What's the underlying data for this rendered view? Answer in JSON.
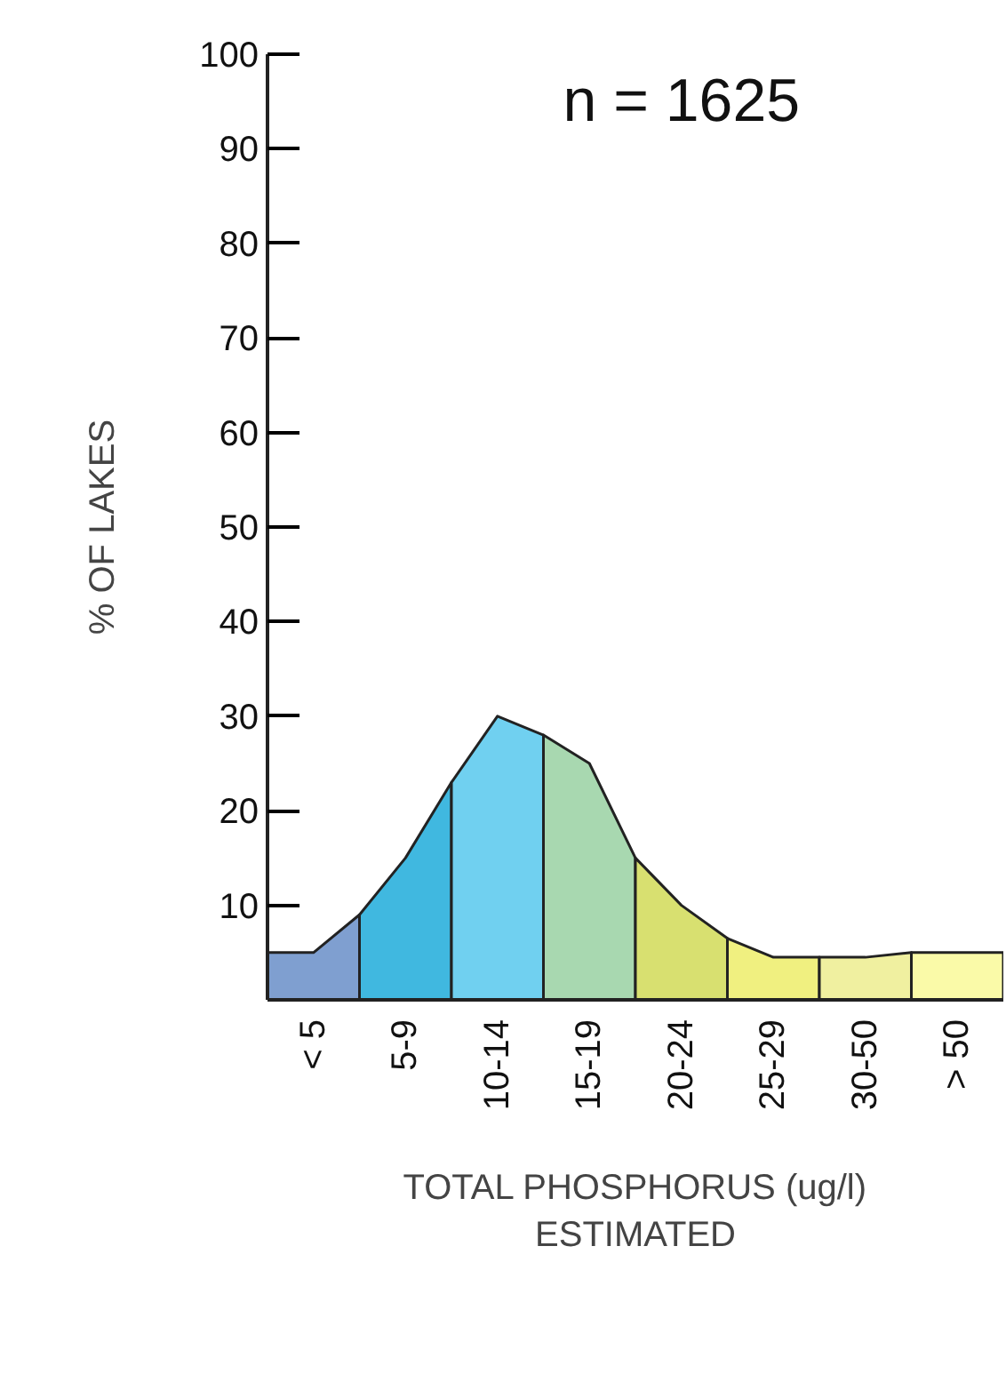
{
  "chart_data": {
    "type": "area",
    "ylabel": "% OF LAKES",
    "xlabel": "TOTAL PHOSPHORUS (ug/l)\nESTIMATED",
    "annotations": [
      "n = 1625"
    ],
    "categories": [
      null,
      "< 5",
      null,
      "5-9",
      null,
      "10-14",
      null,
      "15-19",
      null,
      "20-24",
      null,
      "25-29",
      null,
      "30-50",
      null,
      "> 50",
      null
    ],
    "series": [
      {
        "color": "#7f9fd0",
        "values": [
          5,
          5,
          9,
          null,
          null,
          null,
          null,
          null,
          null,
          null,
          null,
          null,
          null,
          null,
          null,
          null,
          null
        ]
      },
      {
        "color": "#40b8e0",
        "values": [
          null,
          null,
          9,
          15,
          23,
          null,
          null,
          null,
          null,
          null,
          null,
          null,
          null,
          null,
          null,
          null,
          null
        ]
      },
      {
        "color": "#70d0f0",
        "values": [
          null,
          null,
          null,
          null,
          23,
          30,
          28,
          null,
          null,
          null,
          null,
          null,
          null,
          null,
          null,
          null,
          null
        ]
      },
      {
        "color": "#a8d8b0",
        "values": [
          null,
          null,
          null,
          null,
          null,
          null,
          28,
          25,
          15,
          null,
          null,
          null,
          null,
          null,
          null,
          null,
          null
        ]
      },
      {
        "color": "#d8e070",
        "values": [
          null,
          null,
          null,
          null,
          null,
          null,
          null,
          null,
          15,
          10,
          6.5,
          null,
          null,
          null,
          null,
          null,
          null
        ]
      },
      {
        "color": "#f0f080",
        "values": [
          null,
          null,
          null,
          null,
          null,
          null,
          null,
          null,
          null,
          null,
          6.5,
          4.5,
          4.5,
          null,
          null,
          null,
          null
        ]
      },
      {
        "color": "#f0f0a0",
        "values": [
          null,
          null,
          null,
          null,
          null,
          null,
          null,
          null,
          null,
          null,
          null,
          null,
          4.5,
          4.5,
          5,
          null,
          null
        ]
      },
      {
        "color": "#fafaa8",
        "values": [
          null,
          null,
          null,
          null,
          null,
          null,
          null,
          null,
          null,
          null,
          null,
          null,
          null,
          null,
          5,
          5,
          5
        ]
      }
    ],
    "ylim": [
      0,
      100
    ],
    "yticks": [
      10,
      20,
      30,
      40,
      50,
      60,
      70,
      80,
      90,
      100
    ]
  }
}
